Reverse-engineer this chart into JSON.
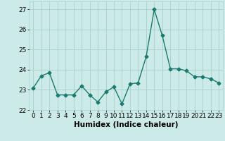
{
  "x": [
    0,
    1,
    2,
    3,
    4,
    5,
    6,
    7,
    8,
    9,
    10,
    11,
    12,
    13,
    14,
    15,
    16,
    17,
    18,
    19,
    20,
    21,
    22,
    23
  ],
  "y": [
    23.1,
    23.7,
    23.85,
    22.75,
    22.75,
    22.75,
    23.2,
    22.75,
    22.4,
    22.9,
    23.15,
    22.3,
    23.3,
    23.35,
    24.65,
    27.0,
    25.7,
    24.05,
    24.05,
    23.95,
    23.65,
    23.65,
    23.55,
    23.35
  ],
  "line_color": "#1a7a6e",
  "marker": "D",
  "markersize": 2.5,
  "linewidth": 1.0,
  "bg_color": "#cceae7",
  "grid_color": "#aacfcc",
  "xlabel": "Humidex (Indice chaleur)",
  "ylim": [
    22.0,
    27.4
  ],
  "yticks": [
    22,
    23,
    24,
    25,
    26,
    27
  ],
  "xticks": [
    0,
    1,
    2,
    3,
    4,
    5,
    6,
    7,
    8,
    9,
    10,
    11,
    12,
    13,
    14,
    15,
    16,
    17,
    18,
    19,
    20,
    21,
    22,
    23
  ],
  "xlabel_fontsize": 7.5,
  "tick_fontsize": 6.5
}
